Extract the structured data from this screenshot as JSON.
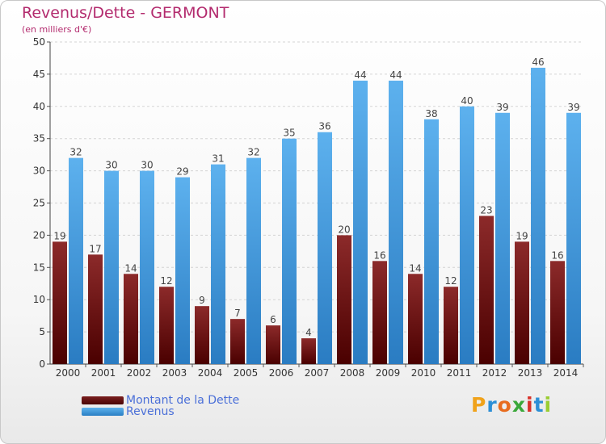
{
  "chart_data": {
    "type": "bar",
    "title": "Revenus/Dette - GERMONT",
    "subtitle": "(en milliers d'€)",
    "categories": [
      "2000",
      "2001",
      "2002",
      "2003",
      "2004",
      "2005",
      "2006",
      "2007",
      "2008",
      "2009",
      "2010",
      "2011",
      "2012",
      "2013",
      "2014"
    ],
    "series": [
      {
        "name": "Montant de la Dette",
        "color": "#7a1e1e",
        "values": [
          19,
          17,
          14,
          12,
          9,
          7,
          6,
          4,
          20,
          16,
          14,
          12,
          23,
          19,
          16
        ]
      },
      {
        "name": "Revenus",
        "color": "#3d9be3",
        "values": [
          32,
          30,
          30,
          29,
          31,
          32,
          35,
          36,
          44,
          44,
          38,
          40,
          39,
          46,
          39
        ]
      }
    ],
    "ylim": [
      0,
      50
    ],
    "yticks": [
      0,
      5,
      10,
      15,
      20,
      25,
      30,
      35,
      40,
      45,
      50
    ],
    "grid": true,
    "legend_position": "bottom-left"
  },
  "logo": {
    "text": "Proxiti"
  }
}
